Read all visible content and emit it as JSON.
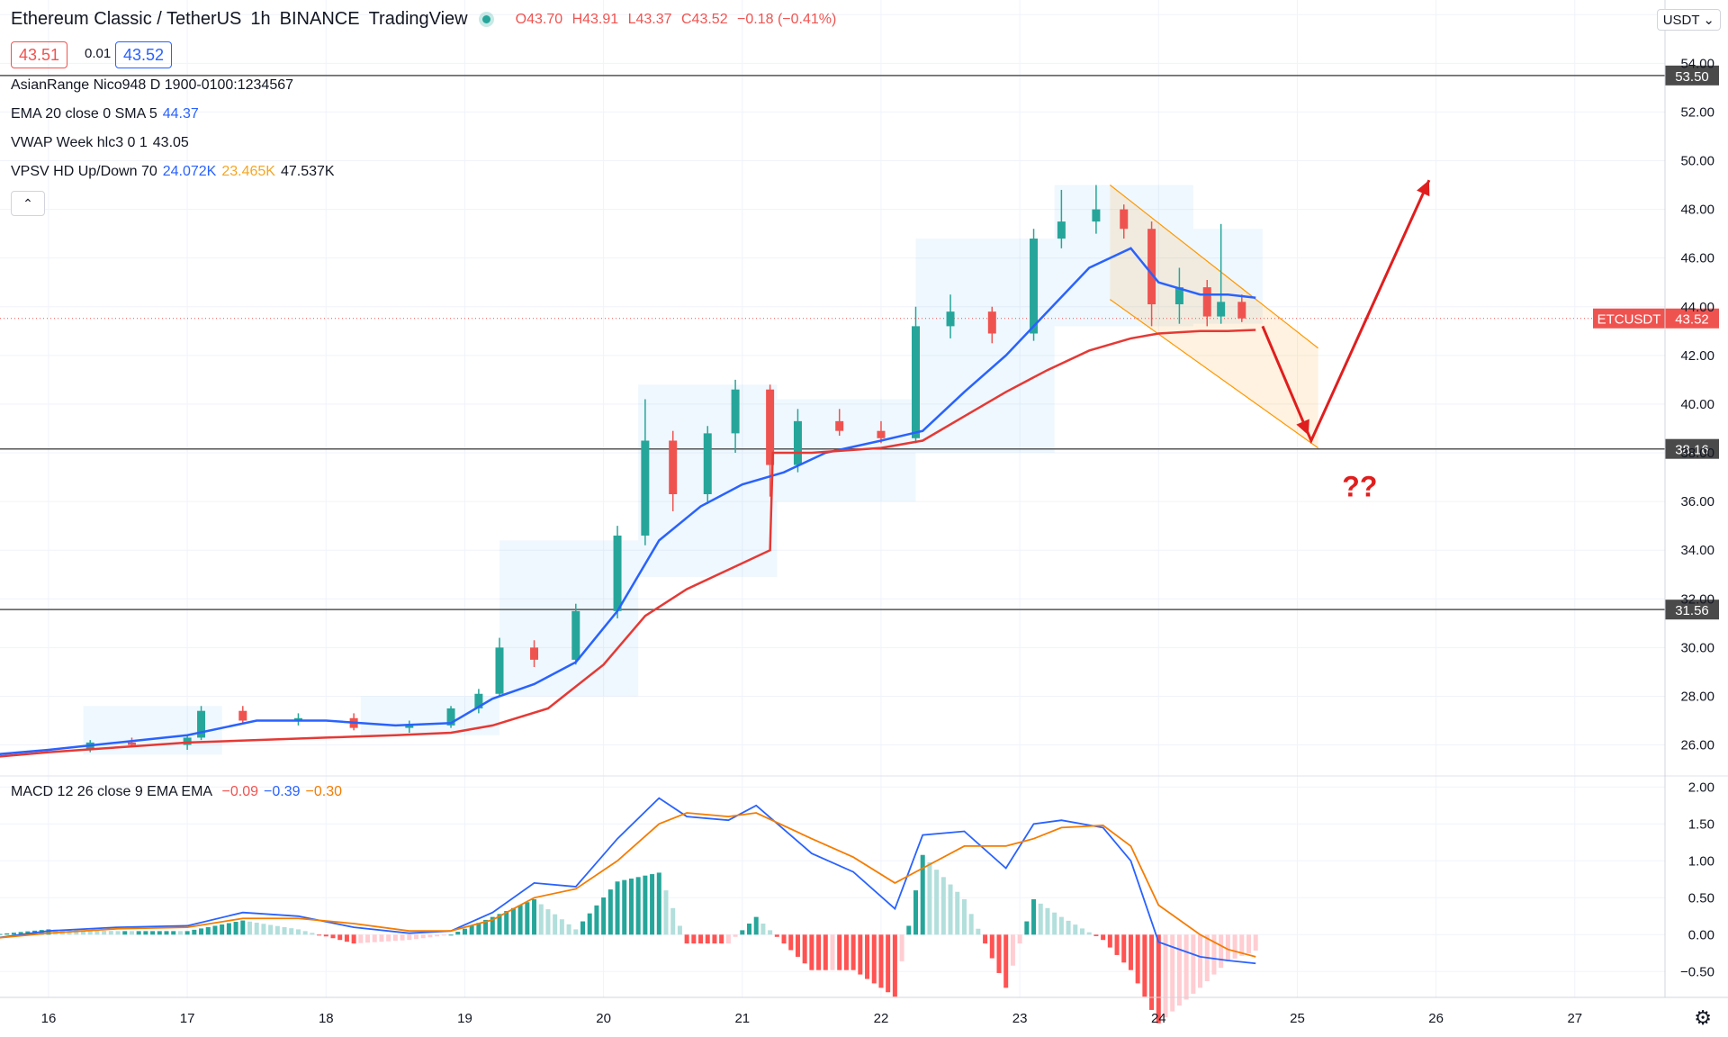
{
  "header": {
    "symbol": "Ethereum Classic / TetherUS",
    "interval": "1h",
    "exchange": "BINANCE",
    "platform": "TradingView",
    "ohlc": {
      "open": "O43.70",
      "high": "H43.91",
      "low": "L43.37",
      "close": "C43.52",
      "change": "−0.18 (−0.41%)"
    },
    "bid": "43.51",
    "spread": "0.01",
    "ask": "43.52",
    "currency": "USDT"
  },
  "indicators": [
    {
      "label": "AsianRange Nico948 D 1900-0100:1234567",
      "values": []
    },
    {
      "label": "EMA 20 close 0 SMA 5",
      "values": [
        {
          "text": "44.37",
          "color": "#2962ff"
        }
      ]
    },
    {
      "label": "VWAP Week hlc3 0 1",
      "values": [
        {
          "text": "43.05",
          "color": "#131722"
        }
      ]
    },
    {
      "label": "VPSV HD Up/Down 70",
      "values": [
        {
          "text": "24.072K",
          "color": "#2962ff"
        },
        {
          "text": "23.465K",
          "color": "#f5a623"
        },
        {
          "text": "47.537K",
          "color": "#131722"
        }
      ]
    }
  ],
  "macd_legend": {
    "label": "MACD 12 26 close 9 EMA EMA",
    "values": [
      {
        "text": "−0.09",
        "color": "#ef5350"
      },
      {
        "text": "−0.39",
        "color": "#2962ff"
      },
      {
        "text": "−0.30",
        "color": "#f57c00"
      }
    ]
  },
  "colors": {
    "ema": "#2962ff",
    "vwap": "#e53935",
    "bull": "#26a69a",
    "bear": "#ef5350",
    "macd": "#2962ff",
    "signal": "#f57c00",
    "annotation": "#e01e1e"
  },
  "chart_data": {
    "type": "line",
    "price_axis": {
      "ylim": [
        24.8,
        56.6
      ],
      "ticks": [
        "26.00",
        "28.00",
        "30.00",
        "32.00",
        "34.00",
        "36.00",
        "38.00",
        "40.00",
        "42.00",
        "44.00",
        "46.00",
        "48.00",
        "50.00",
        "52.00",
        "54.00",
        "56.00"
      ]
    },
    "x_axis": {
      "ticks": [
        "16",
        "17",
        "18",
        "19",
        "20",
        "21",
        "22",
        "23",
        "24",
        "25",
        "26",
        "27"
      ]
    },
    "horizontal_levels": [
      {
        "value": 53.5,
        "label": "53.50"
      },
      {
        "value": 38.16,
        "label": "38.16"
      },
      {
        "value": 31.56,
        "label": "31.56"
      }
    ],
    "last_price": {
      "value": 43.52,
      "symbol": "ETCUSDT",
      "label": "43.52"
    },
    "annotation_text": "??",
    "series": [
      {
        "name": "EMA",
        "x": [
          15.6,
          16.0,
          16.5,
          17.0,
          17.5,
          18.0,
          18.5,
          18.9,
          19.2,
          19.5,
          19.8,
          20.1,
          20.4,
          20.7,
          21.0,
          21.3,
          21.6,
          22.0,
          22.3,
          22.6,
          22.9,
          23.2,
          23.5,
          23.8,
          24.0,
          24.3,
          24.5,
          24.7
        ],
        "values": [
          25.6,
          25.8,
          26.1,
          26.4,
          27.0,
          27.0,
          26.8,
          26.9,
          27.9,
          28.5,
          29.4,
          31.5,
          34.4,
          35.8,
          36.7,
          37.2,
          38.0,
          38.5,
          38.9,
          40.5,
          42.0,
          43.8,
          45.6,
          46.4,
          45.0,
          44.5,
          44.5,
          44.37
        ]
      },
      {
        "name": "VWAP",
        "x": [
          15.6,
          16.0,
          16.5,
          17.0,
          17.5,
          18.0,
          18.5,
          18.9,
          19.2,
          19.6,
          20.0,
          20.3,
          20.6,
          20.9,
          21.2,
          21.22,
          21.5,
          22.0,
          22.3,
          22.6,
          22.9,
          23.2,
          23.5,
          23.8,
          24.0,
          24.3,
          24.5,
          24.7
        ],
        "values": [
          25.5,
          25.7,
          25.9,
          26.1,
          26.2,
          26.3,
          26.4,
          26.5,
          26.8,
          27.5,
          29.3,
          31.3,
          32.4,
          33.2,
          34.0,
          38.0,
          38.0,
          38.2,
          38.5,
          39.5,
          40.5,
          41.4,
          42.2,
          42.7,
          42.9,
          43.0,
          43.0,
          43.05
        ]
      }
    ],
    "candles": [
      [
        16.3,
        25.8,
        26.2,
        25.7,
        26.1
      ],
      [
        16.6,
        26.1,
        26.3,
        25.9,
        26.0
      ],
      [
        17.0,
        26.0,
        26.4,
        25.8,
        26.3
      ],
      [
        17.1,
        26.3,
        27.6,
        26.2,
        27.4
      ],
      [
        17.4,
        27.4,
        27.6,
        26.9,
        27.0
      ],
      [
        17.8,
        27.0,
        27.3,
        26.8,
        27.1
      ],
      [
        18.2,
        27.1,
        27.3,
        26.6,
        26.7
      ],
      [
        18.6,
        26.7,
        27.0,
        26.5,
        26.8
      ],
      [
        18.9,
        26.8,
        27.6,
        26.7,
        27.5
      ],
      [
        19.1,
        27.5,
        28.3,
        27.3,
        28.1
      ],
      [
        19.25,
        28.1,
        30.4,
        28.0,
        30.0
      ],
      [
        19.5,
        30.0,
        30.3,
        29.2,
        29.5
      ],
      [
        19.8,
        29.5,
        31.8,
        29.3,
        31.5
      ],
      [
        20.1,
        31.5,
        35.0,
        31.2,
        34.6
      ],
      [
        20.3,
        34.6,
        40.2,
        34.2,
        38.5
      ],
      [
        20.5,
        38.5,
        38.9,
        35.6,
        36.3
      ],
      [
        20.75,
        36.3,
        39.1,
        35.9,
        38.8
      ],
      [
        20.95,
        38.8,
        41.0,
        38.0,
        40.6
      ],
      [
        21.2,
        40.6,
        40.8,
        36.2,
        37.5
      ],
      [
        21.4,
        37.5,
        39.8,
        37.2,
        39.3
      ],
      [
        21.7,
        39.3,
        39.8,
        38.7,
        38.9
      ],
      [
        22.0,
        38.9,
        39.3,
        38.4,
        38.6
      ],
      [
        22.25,
        38.6,
        44.0,
        38.4,
        43.2
      ],
      [
        22.5,
        43.2,
        44.5,
        42.7,
        43.8
      ],
      [
        22.8,
        43.8,
        44.0,
        42.5,
        42.9
      ],
      [
        23.1,
        42.9,
        47.2,
        42.6,
        46.8
      ],
      [
        23.3,
        46.8,
        48.8,
        46.4,
        47.5
      ],
      [
        23.55,
        47.5,
        49.0,
        47.0,
        48.0
      ],
      [
        23.75,
        48.0,
        48.2,
        46.8,
        47.2
      ],
      [
        23.95,
        47.2,
        47.5,
        43.2,
        44.1
      ],
      [
        24.15,
        44.1,
        45.6,
        43.3,
        44.8
      ],
      [
        24.35,
        44.8,
        45.1,
        43.2,
        43.6
      ],
      [
        24.45,
        43.6,
        47.4,
        43.3,
        44.2
      ],
      [
        24.6,
        44.2,
        44.5,
        43.37,
        43.52
      ]
    ],
    "projection_path": {
      "x": [
        24.75,
        25.1,
        25.95
      ],
      "y": [
        43.2,
        38.5,
        49.2
      ]
    },
    "channel": {
      "upper": [
        [
          23.65,
          49.0
        ],
        [
          25.15,
          42.3
        ]
      ],
      "lower": [
        [
          23.65,
          44.3
        ],
        [
          25.15,
          38.2
        ]
      ]
    },
    "macd": {
      "ylim": [
        -0.85,
        2.15
      ],
      "ticks": [
        "2.00",
        "1.50",
        "1.00",
        "0.50",
        "0.00",
        "−0.50"
      ],
      "x": [
        15.6,
        16.0,
        16.5,
        17.0,
        17.4,
        17.8,
        18.2,
        18.6,
        18.9,
        19.2,
        19.5,
        19.8,
        20.1,
        20.4,
        20.6,
        20.9,
        21.1,
        21.5,
        21.8,
        22.1,
        22.3,
        22.6,
        22.9,
        23.1,
        23.3,
        23.6,
        23.8,
        24.0,
        24.3,
        24.5,
        24.7
      ],
      "macd": [
        -0.05,
        0.05,
        0.1,
        0.12,
        0.3,
        0.25,
        0.1,
        0.02,
        0.05,
        0.3,
        0.7,
        0.65,
        1.3,
        1.85,
        1.6,
        1.55,
        1.75,
        1.1,
        0.85,
        0.35,
        1.35,
        1.4,
        0.9,
        1.5,
        1.55,
        1.45,
        1.0,
        -0.1,
        -0.3,
        -0.35,
        -0.39
      ],
      "signal": [
        -0.05,
        0.02,
        0.08,
        0.1,
        0.22,
        0.22,
        0.15,
        0.05,
        0.05,
        0.2,
        0.5,
        0.62,
        1.0,
        1.5,
        1.65,
        1.6,
        1.65,
        1.3,
        1.05,
        0.7,
        0.9,
        1.2,
        1.2,
        1.3,
        1.45,
        1.48,
        1.2,
        0.4,
        0.0,
        -0.2,
        -0.3
      ]
    }
  }
}
